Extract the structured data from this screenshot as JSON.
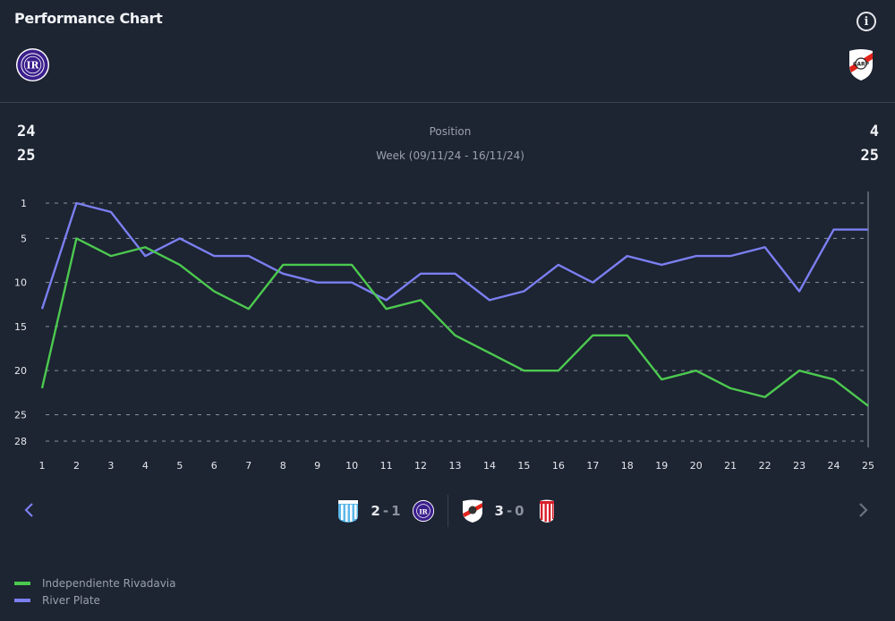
{
  "header": {
    "title": "Performance Chart",
    "info_icon": "info-circle-icon",
    "home_team_crest": "independiente-rivadavia-crest",
    "away_team_crest": "river-plate-crest"
  },
  "summary": {
    "home_position": "24",
    "home_week": "25",
    "away_position": "4",
    "away_week": "25",
    "metric_label": "Position",
    "week_label": "Week (09/11/24 - 16/11/24)"
  },
  "colors": {
    "background": "#1d2432",
    "independiente": "#4cc94f",
    "river": "#7b7ff0",
    "grid": "#8a919c",
    "axis_text": "#e6e8ec"
  },
  "chart_data": {
    "type": "line",
    "title": "Performance Chart",
    "xlabel": "Week",
    "ylabel": "Position",
    "x": [
      1,
      2,
      3,
      4,
      5,
      6,
      7,
      8,
      9,
      10,
      11,
      12,
      13,
      14,
      15,
      16,
      17,
      18,
      19,
      20,
      21,
      22,
      23,
      24,
      25
    ],
    "ylim": [
      1,
      28
    ],
    "y_inverted": true,
    "y_ticks": [
      1,
      5,
      10,
      15,
      20,
      25,
      28
    ],
    "x_ticks": [
      "1",
      "2",
      "3",
      "4",
      "5",
      "6",
      "7",
      "8",
      "9",
      "10",
      "11",
      "12",
      "13",
      "14",
      "15",
      "16",
      "17",
      "18",
      "19",
      "20",
      "21",
      "22",
      "23",
      "24",
      "25"
    ],
    "grid": "horizontal-dashed",
    "legend_position": "bottom-left",
    "series": [
      {
        "name": "Independiente Rivadavia",
        "color": "#4cc94f",
        "values": [
          22,
          5,
          7,
          6,
          8,
          11,
          13,
          8,
          8,
          8,
          13,
          12,
          16,
          18,
          20,
          20,
          16,
          16,
          21,
          20,
          22,
          23,
          20,
          21,
          24
        ]
      },
      {
        "name": "River Plate",
        "color": "#7b7ff0",
        "values": [
          13,
          1,
          2,
          7,
          5,
          7,
          7,
          9,
          10,
          10,
          12,
          9,
          9,
          12,
          11,
          8,
          10,
          7,
          8,
          7,
          7,
          6,
          11,
          4,
          4
        ]
      }
    ]
  },
  "matches": [
    {
      "home_crest": "racing-club-crest",
      "home_score": "2",
      "separator": "-",
      "away_score": "1",
      "away_crest": "independiente-rivadavia-crest"
    },
    {
      "home_crest": "river-plate-crest",
      "home_score": "3",
      "separator": "-",
      "away_score": "0",
      "away_crest": "barracas-central-crest"
    }
  ],
  "nav": {
    "prev_icon": "chevron-left-icon",
    "next_icon": "chevron-right-icon"
  },
  "legend": [
    {
      "label": "Independiente Rivadavia",
      "color": "#4cc94f"
    },
    {
      "label": "River Plate",
      "color": "#7b7ff0"
    }
  ]
}
